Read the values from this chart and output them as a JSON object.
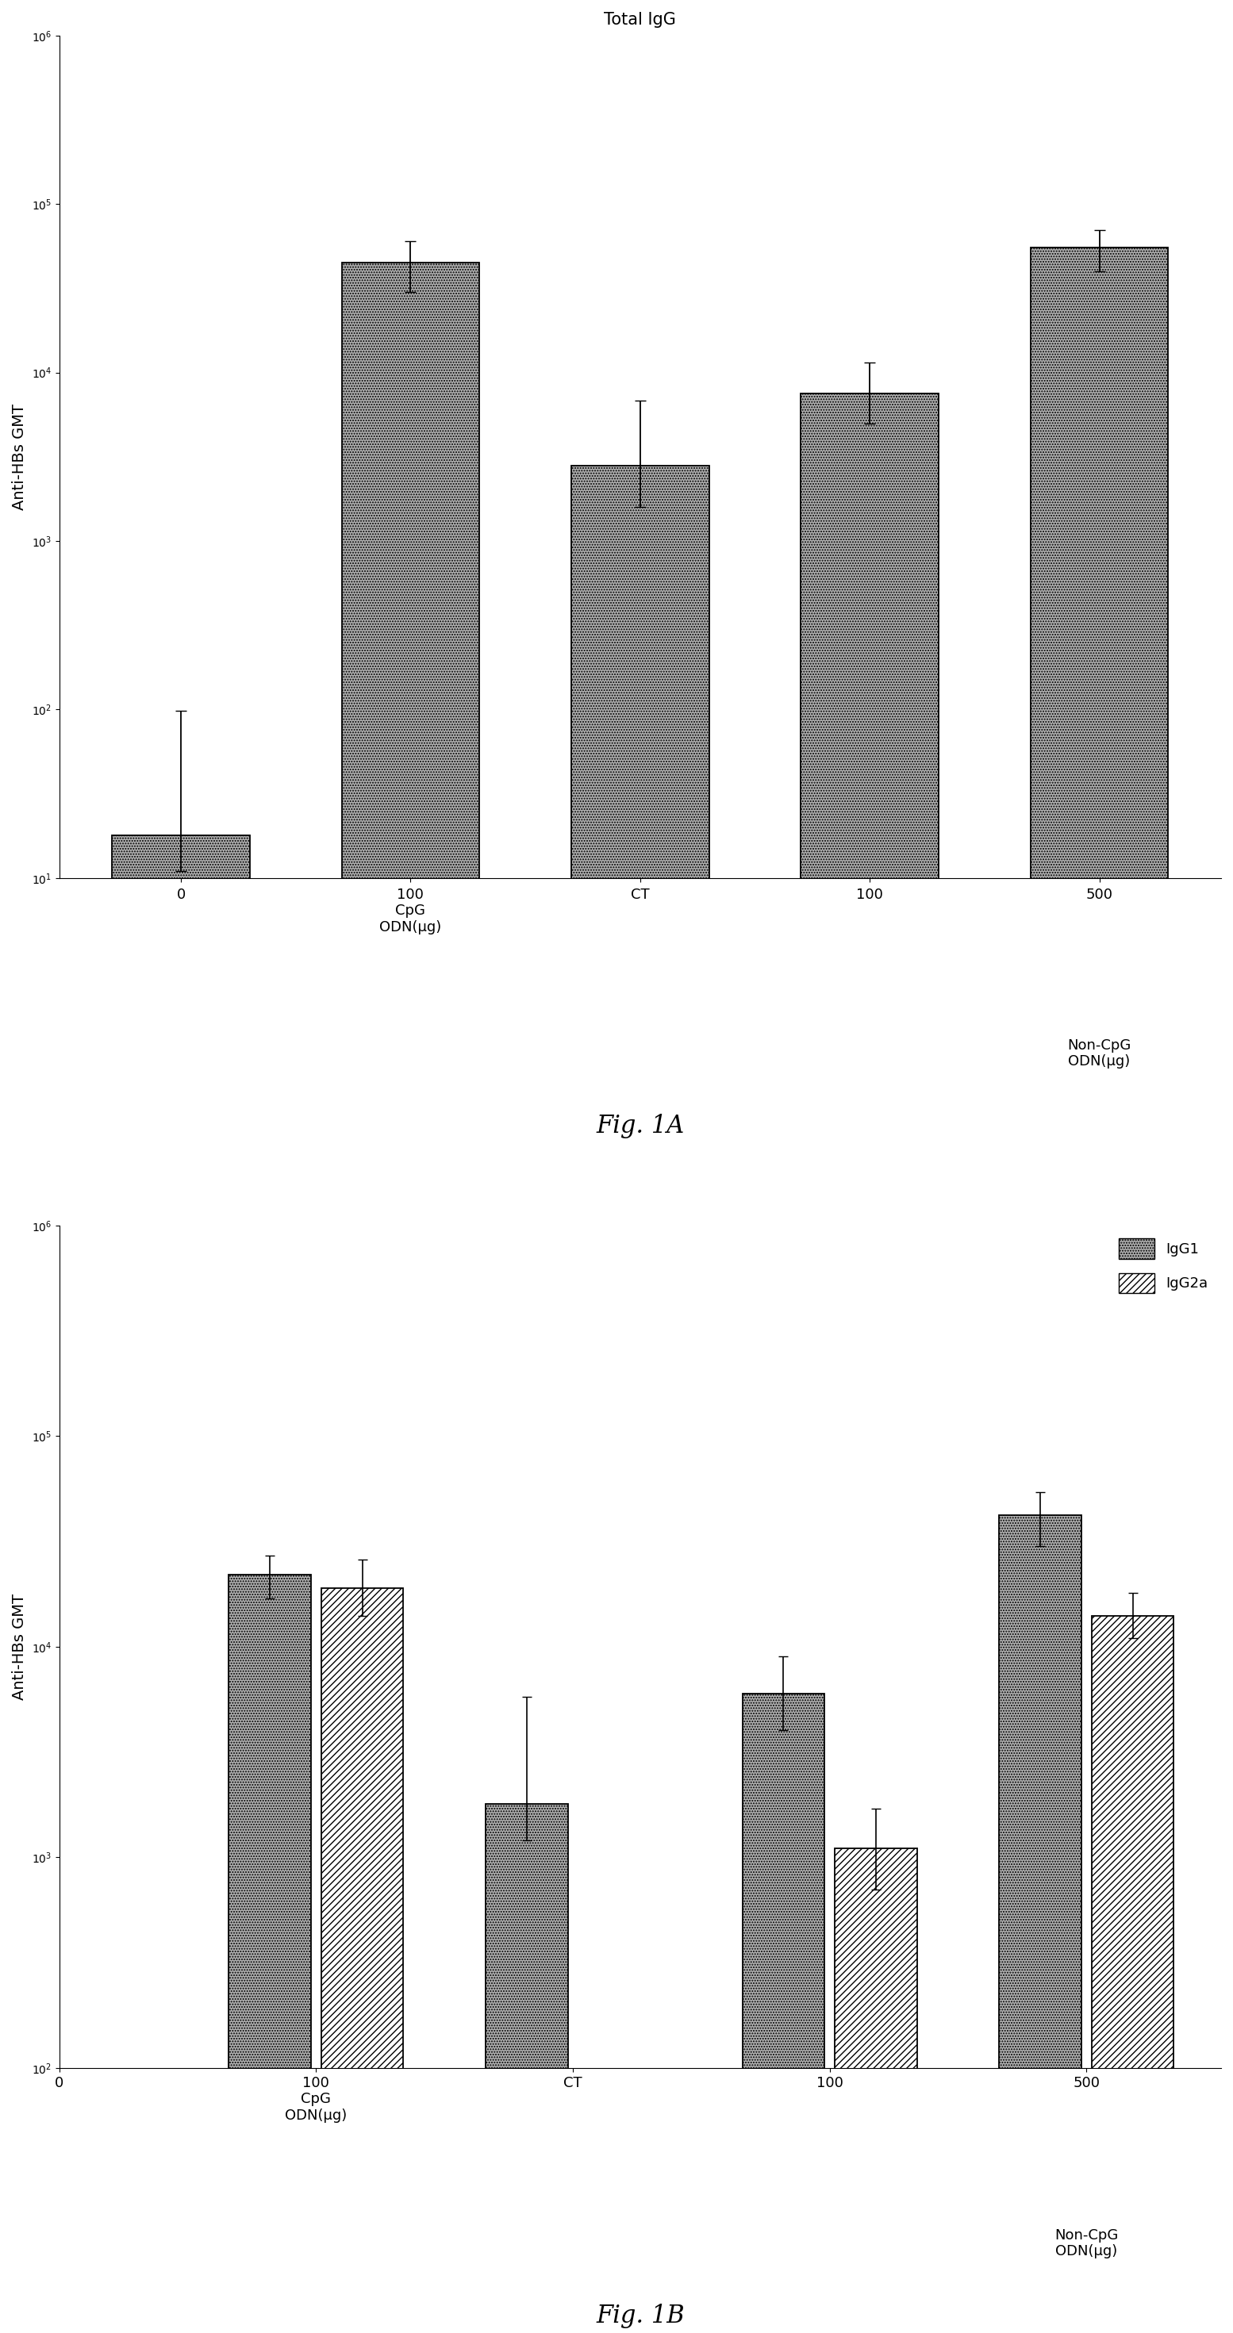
{
  "fig1A": {
    "title": "Total IgG",
    "ylabel": "Anti-HBs GMT",
    "values": [
      18,
      45000,
      2800,
      7500,
      55000
    ],
    "yerr_low": [
      7,
      15000,
      1200,
      2500,
      15000
    ],
    "yerr_high": [
      80,
      15000,
      4000,
      4000,
      15000
    ],
    "ylim_low": 10,
    "ylim_high": 1000000,
    "yticks": [
      10,
      100,
      1000,
      10000,
      100000,
      1000000
    ],
    "xtick_labels": [
      "0",
      "100\nCpG\nODN(μg)",
      "CT",
      "100",
      "500"
    ],
    "xtick_group_label_x": [
      3.5,
      4.5
    ],
    "xtick_group_label": [
      "Non-CpG\nODN(μg)",
      ""
    ],
    "fig_label": "Fig. 1A"
  },
  "fig1B": {
    "ylabel": "Anti-HBs GMT",
    "values_IgG1": [
      null,
      22000,
      1800,
      6000,
      42000
    ],
    "values_IgG2a": [
      null,
      19000,
      null,
      1100,
      14000
    ],
    "yerr_IgG1_low": [
      null,
      5000,
      600,
      2000,
      12000
    ],
    "yerr_IgG1_high": [
      null,
      5000,
      4000,
      3000,
      12000
    ],
    "yerr_IgG2a_low": [
      null,
      5000,
      null,
      400,
      3000
    ],
    "yerr_IgG2a_high": [
      null,
      7000,
      null,
      600,
      4000
    ],
    "ylim_low": 100,
    "ylim_high": 1000000,
    "yticks": [
      100,
      1000,
      10000,
      100000,
      1000000
    ],
    "xtick_labels": [
      "0",
      "100\nCpG\nODN(μg)",
      "CT",
      "100",
      "500"
    ],
    "fig_label": "Fig. 1B",
    "legend_labels": [
      "IgG1",
      "IgG2a"
    ]
  },
  "bar_color_stipple": "#b0b0b0",
  "bar_edgecolor": "#000000",
  "background_color": "#ffffff",
  "title_fontsize": 15,
  "label_fontsize": 14,
  "tick_fontsize": 13,
  "fig_label_fontsize": 22,
  "legend_fontsize": 13
}
